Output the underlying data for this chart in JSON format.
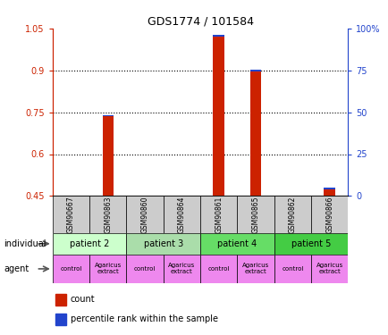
{
  "title": "GDS1774 / 101584",
  "samples": [
    "GSM90667",
    "GSM90863",
    "GSM90860",
    "GSM90864",
    "GSM90861",
    "GSM90865",
    "GSM90862",
    "GSM90866"
  ],
  "count_values": [
    0.45,
    0.735,
    0.45,
    0.45,
    1.02,
    0.895,
    0.45,
    0.475
  ],
  "percentile_values": [
    0.0,
    0.005,
    0.0,
    0.0,
    0.007,
    0.007,
    0.0,
    0.005
  ],
  "bar_bottom": 0.45,
  "ylim_left": [
    0.45,
    1.05
  ],
  "ylim_right": [
    0,
    100
  ],
  "yticks_left": [
    0.45,
    0.6,
    0.75,
    0.9,
    1.05
  ],
  "yticks_right": [
    0,
    25,
    50,
    75,
    100
  ],
  "ytick_labels_left": [
    "0.45",
    "0.6",
    "0.75",
    "0.9",
    "1.05"
  ],
  "ytick_labels_right": [
    "0",
    "25",
    "50",
    "75",
    "100%"
  ],
  "individuals": [
    {
      "label": "patient 2",
      "span": [
        0,
        2
      ],
      "color": "#ccffcc"
    },
    {
      "label": "patient 3",
      "span": [
        2,
        4
      ],
      "color": "#aaddaa"
    },
    {
      "label": "patient 4",
      "span": [
        4,
        6
      ],
      "color": "#66dd66"
    },
    {
      "label": "patient 5",
      "span": [
        6,
        8
      ],
      "color": "#44cc44"
    }
  ],
  "agents": [
    {
      "label": "control",
      "span": [
        0,
        1
      ]
    },
    {
      "label": "Agaricus\nextract",
      "span": [
        1,
        2
      ]
    },
    {
      "label": "control",
      "span": [
        2,
        3
      ]
    },
    {
      "label": "Agaricus\nextract",
      "span": [
        3,
        4
      ]
    },
    {
      "label": "control",
      "span": [
        4,
        5
      ]
    },
    {
      "label": "Agaricus\nextract",
      "span": [
        5,
        6
      ]
    },
    {
      "label": "control",
      "span": [
        6,
        7
      ]
    },
    {
      "label": "Agaricus\nextract",
      "span": [
        7,
        8
      ]
    }
  ],
  "count_color": "#cc2200",
  "percentile_color": "#2244cc",
  "sample_bg_color": "#cccccc",
  "grid_color": "#555555",
  "left_label_color": "#cc2200",
  "right_label_color": "#2244cc",
  "agent_color": "#ee88ee",
  "bar_width": 0.3
}
